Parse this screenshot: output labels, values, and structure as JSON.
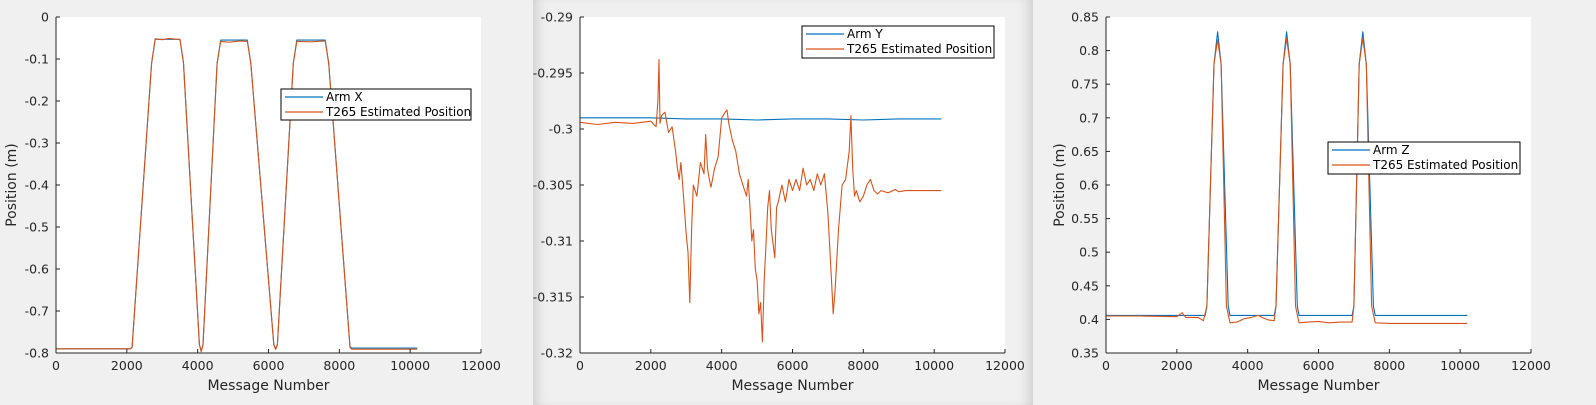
{
  "figure": {
    "background": "#f0f0f0",
    "axes_background": "#ffffff",
    "colors": {
      "series1": "#0072bd",
      "series2": "#d95319",
      "axis": "#262626"
    }
  },
  "chart_data": [
    {
      "type": "line",
      "title": "",
      "xlabel": "Message Number",
      "ylabel": "Position (m)",
      "xlim": [
        0,
        12000
      ],
      "ylim": [
        -0.8,
        0
      ],
      "xticks": [
        0,
        2000,
        4000,
        6000,
        8000,
        10000,
        12000
      ],
      "xtick_labels": [
        "0",
        "2000",
        "4000",
        "6000",
        "8000",
        "10000",
        "12000"
      ],
      "yticks": [
        -0.8,
        -0.7,
        -0.6,
        -0.5,
        -0.4,
        -0.3,
        -0.2,
        -0.1,
        0
      ],
      "ytick_labels": [
        "-0.8",
        "-0.7",
        "-0.6",
        "-0.5",
        "-0.4",
        "-0.3",
        "-0.2",
        "-0.1",
        "0"
      ],
      "grid": false,
      "legend_position": "right",
      "series": [
        {
          "name": "Arm X",
          "color": "#0072bd",
          "points": [
            [
              0,
              -0.79
            ],
            [
              2100,
              -0.79
            ],
            [
              2150,
              -0.785
            ],
            [
              2700,
              -0.11
            ],
            [
              2800,
              -0.053
            ],
            [
              3500,
              -0.053
            ],
            [
              3600,
              -0.11
            ],
            [
              4050,
              -0.78
            ],
            [
              4100,
              -0.795
            ],
            [
              4150,
              -0.78
            ],
            [
              4550,
              -0.11
            ],
            [
              4650,
              -0.055
            ],
            [
              5400,
              -0.055
            ],
            [
              5500,
              -0.11
            ],
            [
              6150,
              -0.78
            ],
            [
              6200,
              -0.79
            ],
            [
              6250,
              -0.78
            ],
            [
              6700,
              -0.11
            ],
            [
              6800,
              -0.055
            ],
            [
              7600,
              -0.055
            ],
            [
              7700,
              -0.11
            ],
            [
              8300,
              -0.785
            ],
            [
              8350,
              -0.788
            ],
            [
              10200,
              -0.788
            ]
          ]
        },
        {
          "name": "T265 Estimated Position",
          "color": "#d95319",
          "points": [
            [
              0,
              -0.79
            ],
            [
              2100,
              -0.79
            ],
            [
              2150,
              -0.787
            ],
            [
              2700,
              -0.11
            ],
            [
              2800,
              -0.052
            ],
            [
              3000,
              -0.054
            ],
            [
              3200,
              -0.051
            ],
            [
              3500,
              -0.054
            ],
            [
              3600,
              -0.11
            ],
            [
              4050,
              -0.78
            ],
            [
              4100,
              -0.797
            ],
            [
              4150,
              -0.78
            ],
            [
              4550,
              -0.11
            ],
            [
              4650,
              -0.058
            ],
            [
              4900,
              -0.06
            ],
            [
              5200,
              -0.057
            ],
            [
              5400,
              -0.058
            ],
            [
              5500,
              -0.11
            ],
            [
              6150,
              -0.78
            ],
            [
              6200,
              -0.792
            ],
            [
              6250,
              -0.78
            ],
            [
              6700,
              -0.11
            ],
            [
              6800,
              -0.058
            ],
            [
              7200,
              -0.059
            ],
            [
              7600,
              -0.057
            ],
            [
              7700,
              -0.11
            ],
            [
              8300,
              -0.787
            ],
            [
              8350,
              -0.791
            ],
            [
              10200,
              -0.791
            ]
          ]
        }
      ]
    },
    {
      "type": "line",
      "title": "",
      "xlabel": "Message Number",
      "ylabel": "",
      "xlim": [
        0,
        12000
      ],
      "ylim": [
        -0.32,
        -0.29
      ],
      "xticks": [
        0,
        2000,
        4000,
        6000,
        8000,
        10000,
        12000
      ],
      "xtick_labels": [
        "0",
        "2000",
        "4000",
        "6000",
        "8000",
        "10000",
        "12000"
      ],
      "yticks": [
        -0.32,
        -0.315,
        -0.31,
        -0.305,
        -0.3,
        -0.295,
        -0.29
      ],
      "ytick_labels": [
        "-0.32",
        "-0.315",
        "-0.31",
        "-0.305",
        "-0.3",
        "-0.295",
        "-0.29"
      ],
      "grid": false,
      "legend_position": "top-right",
      "series": [
        {
          "name": "Arm Y",
          "color": "#0072bd",
          "points": [
            [
              0,
              -0.299
            ],
            [
              2000,
              -0.299
            ],
            [
              3000,
              -0.2991
            ],
            [
              4000,
              -0.2991
            ],
            [
              5000,
              -0.2992
            ],
            [
              6000,
              -0.2991
            ],
            [
              7000,
              -0.2991
            ],
            [
              8000,
              -0.2992
            ],
            [
              9000,
              -0.2991
            ],
            [
              10200,
              -0.2991
            ]
          ]
        },
        {
          "name": "T265 Estimated Position",
          "color": "#d95319",
          "points": [
            [
              0,
              -0.2994
            ],
            [
              500,
              -0.2996
            ],
            [
              1000,
              -0.2994
            ],
            [
              1500,
              -0.2995
            ],
            [
              2000,
              -0.2993
            ],
            [
              2150,
              -0.2998
            ],
            [
              2200,
              -0.2975
            ],
            [
              2230,
              -0.2938
            ],
            [
              2260,
              -0.2995
            ],
            [
              2300,
              -0.2988
            ],
            [
              2400,
              -0.2985
            ],
            [
              2500,
              -0.3003
            ],
            [
              2600,
              -0.2998
            ],
            [
              2700,
              -0.302
            ],
            [
              2750,
              -0.3035
            ],
            [
              2800,
              -0.3045
            ],
            [
              2850,
              -0.303
            ],
            [
              2900,
              -0.305
            ],
            [
              3000,
              -0.3095
            ],
            [
              3050,
              -0.311
            ],
            [
              3100,
              -0.3155
            ],
            [
              3150,
              -0.309
            ],
            [
              3200,
              -0.305
            ],
            [
              3300,
              -0.306
            ],
            [
              3400,
              -0.303
            ],
            [
              3500,
              -0.304
            ],
            [
              3550,
              -0.3005
            ],
            [
              3600,
              -0.3035
            ],
            [
              3650,
              -0.3045
            ],
            [
              3700,
              -0.3052
            ],
            [
              3800,
              -0.3035
            ],
            [
              3900,
              -0.3025
            ],
            [
              4000,
              -0.299
            ],
            [
              4100,
              -0.2985
            ],
            [
              4150,
              -0.2983
            ],
            [
              4200,
              -0.2995
            ],
            [
              4300,
              -0.301
            ],
            [
              4400,
              -0.302
            ],
            [
              4500,
              -0.304
            ],
            [
              4600,
              -0.305
            ],
            [
              4700,
              -0.306
            ],
            [
              4750,
              -0.3045
            ],
            [
              4800,
              -0.307
            ],
            [
              4850,
              -0.31
            ],
            [
              4900,
              -0.309
            ],
            [
              4950,
              -0.3125
            ],
            [
              5000,
              -0.3135
            ],
            [
              5050,
              -0.3165
            ],
            [
              5100,
              -0.3155
            ],
            [
              5150,
              -0.319
            ],
            [
              5200,
              -0.3135
            ],
            [
              5250,
              -0.3105
            ],
            [
              5300,
              -0.307
            ],
            [
              5350,
              -0.3055
            ],
            [
              5400,
              -0.309
            ],
            [
              5500,
              -0.3115
            ],
            [
              5550,
              -0.307
            ],
            [
              5600,
              -0.3065
            ],
            [
              5700,
              -0.305
            ],
            [
              5800,
              -0.3065
            ],
            [
              5900,
              -0.3045
            ],
            [
              6000,
              -0.3055
            ],
            [
              6100,
              -0.3045
            ],
            [
              6200,
              -0.3055
            ],
            [
              6300,
              -0.3035
            ],
            [
              6400,
              -0.305
            ],
            [
              6500,
              -0.3045
            ],
            [
              6600,
              -0.3055
            ],
            [
              6700,
              -0.304
            ],
            [
              6800,
              -0.305
            ],
            [
              6900,
              -0.304
            ],
            [
              7000,
              -0.3075
            ],
            [
              7100,
              -0.3135
            ],
            [
              7150,
              -0.3165
            ],
            [
              7200,
              -0.3145
            ],
            [
              7300,
              -0.309
            ],
            [
              7400,
              -0.305
            ],
            [
              7500,
              -0.3045
            ],
            [
              7600,
              -0.302
            ],
            [
              7650,
              -0.2988
            ],
            [
              7700,
              -0.3035
            ],
            [
              7750,
              -0.306
            ],
            [
              7800,
              -0.3055
            ],
            [
              7900,
              -0.3065
            ],
            [
              8000,
              -0.306
            ],
            [
              8100,
              -0.305
            ],
            [
              8200,
              -0.3045
            ],
            [
              8300,
              -0.3055
            ],
            [
              8400,
              -0.3058
            ],
            [
              8500,
              -0.3055
            ],
            [
              8700,
              -0.3057
            ],
            [
              8900,
              -0.3054
            ],
            [
              9000,
              -0.3056
            ],
            [
              9200,
              -0.3055
            ],
            [
              10200,
              -0.3055
            ]
          ]
        }
      ]
    },
    {
      "type": "line",
      "title": "",
      "xlabel": "Message Number",
      "ylabel": "Position (m)",
      "xlim": [
        0,
        12000
      ],
      "ylim": [
        0.35,
        0.85
      ],
      "xticks": [
        0,
        2000,
        4000,
        6000,
        8000,
        10000,
        12000
      ],
      "xtick_labels": [
        "0",
        "2000",
        "4000",
        "6000",
        "8000",
        "10000",
        "12000"
      ],
      "yticks": [
        0.35,
        0.4,
        0.45,
        0.5,
        0.55,
        0.6,
        0.65,
        0.7,
        0.75,
        0.8,
        0.85
      ],
      "ytick_labels": [
        "0.35",
        "0.4",
        "0.45",
        "0.5",
        "0.55",
        "0.6",
        "0.65",
        "0.7",
        "0.75",
        "0.8",
        "0.85"
      ],
      "grid": false,
      "legend_position": "right",
      "series": [
        {
          "name": "Arm Z",
          "color": "#0072bd",
          "points": [
            [
              0,
              0.406
            ],
            [
              2800,
              0.406
            ],
            [
              2850,
              0.42
            ],
            [
              3050,
              0.78
            ],
            [
              3150,
              0.828
            ],
            [
              3250,
              0.78
            ],
            [
              3450,
              0.42
            ],
            [
              3500,
              0.406
            ],
            [
              4750,
              0.406
            ],
            [
              4800,
              0.42
            ],
            [
              5000,
              0.78
            ],
            [
              5100,
              0.828
            ],
            [
              5200,
              0.78
            ],
            [
              5400,
              0.42
            ],
            [
              5450,
              0.406
            ],
            [
              6950,
              0.406
            ],
            [
              7000,
              0.42
            ],
            [
              7150,
              0.78
            ],
            [
              7250,
              0.828
            ],
            [
              7350,
              0.78
            ],
            [
              7550,
              0.42
            ],
            [
              7600,
              0.406
            ],
            [
              10200,
              0.406
            ]
          ]
        },
        {
          "name": "T265 Estimated Position",
          "color": "#d95319",
          "points": [
            [
              0,
              0.405
            ],
            [
              1000,
              0.405
            ],
            [
              2000,
              0.404
            ],
            [
              2150,
              0.41
            ],
            [
              2250,
              0.403
            ],
            [
              2600,
              0.403
            ],
            [
              2750,
              0.398
            ],
            [
              2850,
              0.42
            ],
            [
              3050,
              0.78
            ],
            [
              3150,
              0.816
            ],
            [
              3250,
              0.78
            ],
            [
              3400,
              0.42
            ],
            [
              3500,
              0.395
            ],
            [
              3700,
              0.396
            ],
            [
              3900,
              0.401
            ],
            [
              4100,
              0.403
            ],
            [
              4300,
              0.406
            ],
            [
              4450,
              0.402
            ],
            [
              4600,
              0.399
            ],
            [
              4750,
              0.398
            ],
            [
              4800,
              0.42
            ],
            [
              5000,
              0.78
            ],
            [
              5100,
              0.818
            ],
            [
              5200,
              0.78
            ],
            [
              5350,
              0.42
            ],
            [
              5450,
              0.395
            ],
            [
              5700,
              0.396
            ],
            [
              6000,
              0.397
            ],
            [
              6300,
              0.395
            ],
            [
              6600,
              0.396
            ],
            [
              6950,
              0.396
            ],
            [
              7000,
              0.42
            ],
            [
              7150,
              0.78
            ],
            [
              7250,
              0.818
            ],
            [
              7350,
              0.78
            ],
            [
              7500,
              0.42
            ],
            [
              7600,
              0.395
            ],
            [
              8000,
              0.394
            ],
            [
              9000,
              0.394
            ],
            [
              10200,
              0.394
            ]
          ]
        }
      ]
    }
  ]
}
